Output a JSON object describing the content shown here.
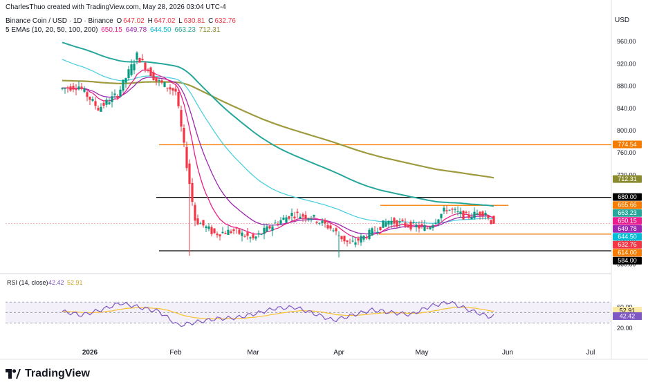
{
  "header": {
    "line1": "CharlesThuo created with TradingView.com, May 28, 2026 03:04 UTC-4",
    "symbol": "Binance Coin / USD · 1D · Binance",
    "o_label": "O",
    "o_value": "647.02",
    "h_label": "H",
    "h_value": "647.02",
    "l_label": "L",
    "l_value": "630.81",
    "c_label": "C",
    "c_value": "632.76",
    "ema_title": "5 EMAs (10, 20, 50, 100, 200)",
    "ema_values": [
      "650.15",
      "649.78",
      "644.50",
      "663.23",
      "712.31"
    ]
  },
  "currency": "USD",
  "brand": "TradingView",
  "colors": {
    "up": "#089981",
    "down": "#f23645",
    "ema10": "#e91e8c",
    "ema20": "#9c27b0",
    "ema50": "#4dd0e1",
    "ema100": "#26a69a",
    "ema200": "#9e9a3e",
    "orange_line": "#f57c00",
    "black_line": "#000000",
    "rsi": "#7e57c2",
    "rsi_ma": "#fbc02d"
  },
  "chart_data": {
    "type": "candlestick",
    "title": "Binance Coin / USD · 1D · Binance",
    "x_ticks": [
      "2026",
      "Feb",
      "Mar",
      "Apr",
      "May",
      "Jun",
      "Jul"
    ],
    "y_ticks": [
      960,
      920,
      880,
      840,
      800,
      760,
      720,
      680,
      640,
      600,
      560
    ],
    "ylim": [
      548,
      975
    ],
    "ohlc_weekly_approx": [
      {
        "date": "2025-12-22",
        "o": 875,
        "h": 900,
        "l": 855,
        "c": 880
      },
      {
        "date": "2025-12-29",
        "o": 880,
        "h": 890,
        "l": 830,
        "c": 840
      },
      {
        "date": "2026-01-05",
        "o": 840,
        "h": 880,
        "l": 835,
        "c": 865
      },
      {
        "date": "2026-01-12",
        "o": 865,
        "h": 945,
        "l": 860,
        "c": 935
      },
      {
        "date": "2026-01-19",
        "o": 935,
        "h": 955,
        "l": 880,
        "c": 890
      },
      {
        "date": "2026-01-26",
        "o": 890,
        "h": 905,
        "l": 850,
        "c": 870
      },
      {
        "date": "2026-02-02",
        "o": 870,
        "h": 875,
        "l": 575,
        "c": 640
      },
      {
        "date": "2026-02-09",
        "o": 640,
        "h": 650,
        "l": 600,
        "c": 615
      },
      {
        "date": "2026-02-16",
        "o": 615,
        "h": 630,
        "l": 600,
        "c": 620
      },
      {
        "date": "2026-02-23",
        "o": 620,
        "h": 625,
        "l": 585,
        "c": 605
      },
      {
        "date": "2026-03-02",
        "o": 605,
        "h": 640,
        "l": 600,
        "c": 630
      },
      {
        "date": "2026-03-09",
        "o": 630,
        "h": 660,
        "l": 615,
        "c": 650
      },
      {
        "date": "2026-03-16",
        "o": 650,
        "h": 680,
        "l": 635,
        "c": 645
      },
      {
        "date": "2026-03-23",
        "o": 645,
        "h": 650,
        "l": 620,
        "c": 625
      },
      {
        "date": "2026-03-30",
        "o": 625,
        "h": 630,
        "l": 575,
        "c": 595
      },
      {
        "date": "2026-04-06",
        "o": 595,
        "h": 625,
        "l": 590,
        "c": 615
      },
      {
        "date": "2026-04-13",
        "o": 615,
        "h": 645,
        "l": 612,
        "c": 638
      },
      {
        "date": "2026-04-20",
        "o": 638,
        "h": 645,
        "l": 625,
        "c": 630
      },
      {
        "date": "2026-04-27",
        "o": 630,
        "h": 640,
        "l": 612,
        "c": 625
      },
      {
        "date": "2026-05-04",
        "o": 625,
        "h": 665,
        "l": 620,
        "c": 660
      },
      {
        "date": "2026-05-11",
        "o": 660,
        "h": 680,
        "l": 640,
        "c": 645
      },
      {
        "date": "2026-05-18",
        "o": 645,
        "h": 662,
        "l": 640,
        "c": 655
      },
      {
        "date": "2026-05-25",
        "o": 647.02,
        "h": 647.02,
        "l": 630.81,
        "c": 632.76
      }
    ],
    "ema_last": {
      "ema10": 650.15,
      "ema20": 649.78,
      "ema50": 644.5,
      "ema100": 663.23,
      "ema200": 712.31
    },
    "levels": {
      "orange": [
        774.54,
        665.66,
        614.0
      ],
      "black": [
        680.0,
        584.0
      ]
    },
    "price_labels": [
      {
        "text": "774.54",
        "value": 774.54,
        "color": "#f57c00"
      },
      {
        "text": "712.31",
        "value": 712.31,
        "color": "#8a8a2e"
      },
      {
        "text": "680.00",
        "value": 680.0,
        "color": "#000000"
      },
      {
        "text": "665.66",
        "value": 665.66,
        "color": "#f57c00"
      },
      {
        "text": "663.23",
        "value": 663.23,
        "color": "#26a69a"
      },
      {
        "text": "650.15",
        "value": 650.15,
        "color": "#e91e8c"
      },
      {
        "text": "649.78",
        "value": 649.78,
        "color": "#9c27b0"
      },
      {
        "text": "644.50",
        "value": 644.5,
        "color": "#00bcd4"
      },
      {
        "text": "632.76",
        "value": 632.76,
        "color": "#f23645"
      },
      {
        "text": "614.00",
        "value": 614.0,
        "color": "#f57c00"
      },
      {
        "text": "584.00",
        "value": 584.0,
        "color": "#000000"
      }
    ],
    "rsi": {
      "label": "RSI (14, close)",
      "value": "42.42",
      "ma_value": "52.91",
      "y_ticks": [
        60,
        20
      ],
      "bands": [
        70,
        30
      ],
      "values_weekly_approx": [
        52,
        45,
        55,
        68,
        60,
        52,
        25,
        32,
        38,
        40,
        48,
        58,
        60,
        48,
        35,
        45,
        55,
        50,
        46,
        62,
        70,
        55,
        42.42
      ]
    }
  }
}
